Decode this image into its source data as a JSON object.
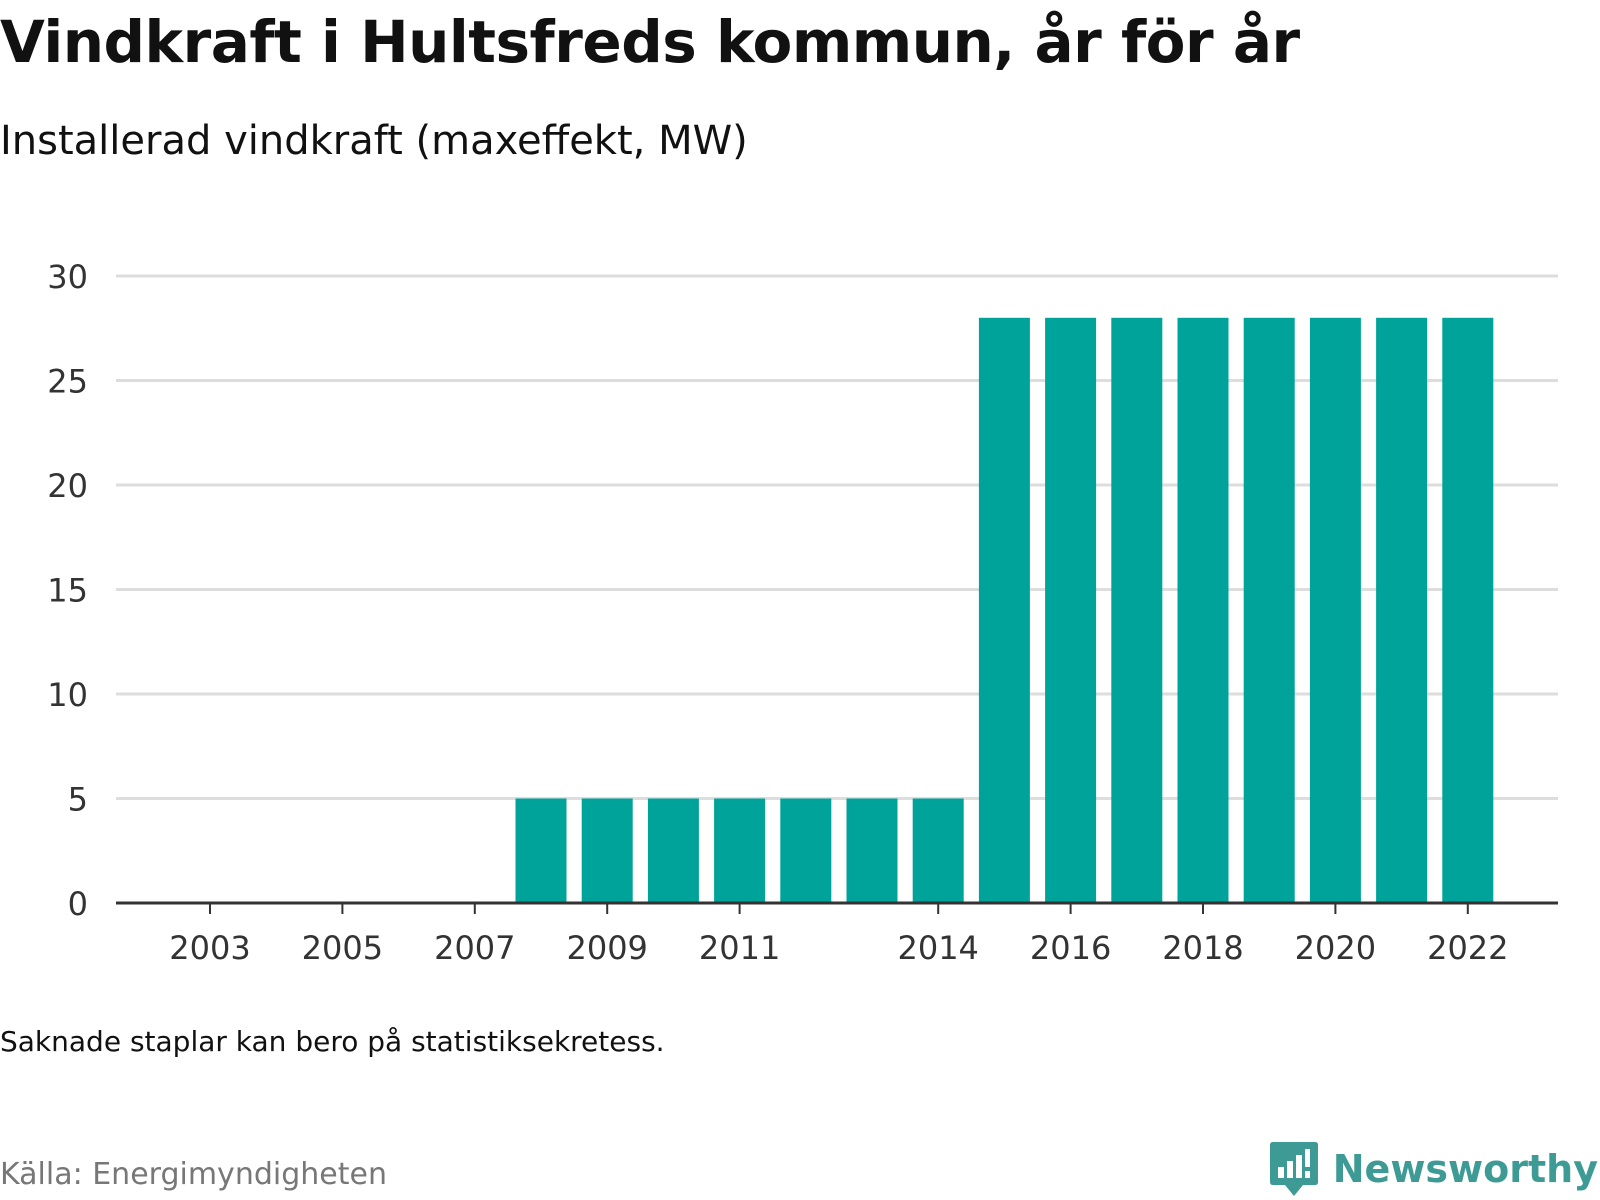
{
  "title": "Vindkraft i Hultsfreds kommun, år för år",
  "subtitle": "Installerad vindkraft (maxeffekt, MW)",
  "note": "Saknade staplar kan bero på statistiksekretess.",
  "source": "Källa: Energimyndigheten",
  "brand": {
    "name": "Newsworthy",
    "icon": "newsworthy-logo-icon",
    "color": "#3d9a94"
  },
  "chart_data": {
    "type": "bar",
    "categories": [
      2003,
      2004,
      2005,
      2006,
      2007,
      2008,
      2009,
      2010,
      2011,
      2012,
      2013,
      2014,
      2015,
      2016,
      2017,
      2018,
      2019,
      2020,
      2021,
      2022
    ],
    "values": [
      0,
      0,
      0,
      0,
      0,
      5,
      5,
      5,
      5,
      5,
      5,
      5,
      28,
      28,
      28,
      28,
      28,
      28,
      28,
      28
    ],
    "x_tick_labels": [
      "2003",
      "2005",
      "2007",
      "2009",
      "2011",
      "2014",
      "2016",
      "2018",
      "2020",
      "2022"
    ],
    "y_ticks": [
      0,
      5,
      10,
      15,
      20,
      25,
      30
    ],
    "ylim": [
      0,
      30
    ],
    "xlabel": "",
    "ylabel": "",
    "grid": true,
    "bar_color": "#00a39a"
  }
}
